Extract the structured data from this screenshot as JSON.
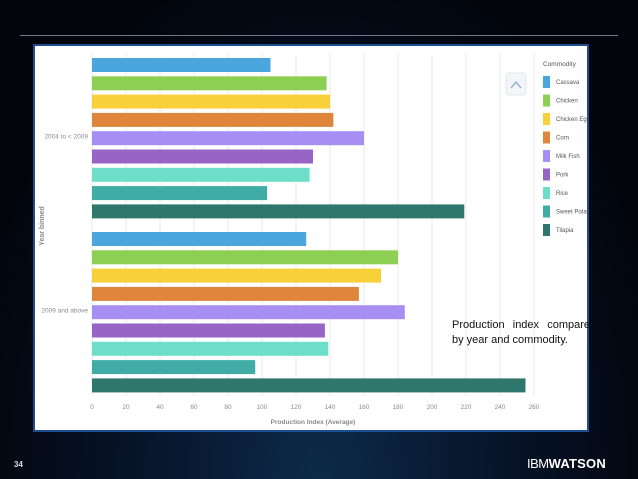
{
  "slide": {
    "page_number": "34",
    "callout_text": "Production index compare by year and commodity.",
    "logo_part1": "IBM",
    "logo_part2": "WATSON"
  },
  "colors": {
    "Cassava": "#4aa6dc",
    "Chicken": "#8ccf52",
    "Chicken Egg": "#f7d03a",
    "Corn": "#e0853c",
    "Milk Fish": "#a68ef2",
    "Pork": "#9865c6",
    "Rice": "#6ddfc8",
    "Sweet Potato": "#3fada5",
    "Tilapia": "#2f776c"
  },
  "chart_data": {
    "type": "bar",
    "orientation": "horizontal",
    "xlabel": "Production Index (Average)",
    "ylabel": "Year binned",
    "xlim": [
      0,
      260
    ],
    "x_ticks": [
      0,
      20,
      40,
      60,
      80,
      100,
      120,
      140,
      160,
      180,
      200,
      220,
      240,
      260
    ],
    "grid": true,
    "legend_title": "Commodity",
    "legend_position": "top-right",
    "series_names": [
      "Cassava",
      "Chicken",
      "Chicken Egg",
      "Corn",
      "Milk Fish",
      "Pork",
      "Rice",
      "Sweet Potato",
      "Tilapia"
    ],
    "groups": [
      {
        "label": "2004 to < 2009",
        "values": [
          105,
          138,
          140,
          142,
          160,
          130,
          128,
          103,
          219
        ]
      },
      {
        "label": "2009 and above",
        "values": [
          126,
          180,
          170,
          157,
          184,
          137,
          139,
          96,
          255
        ]
      }
    ]
  }
}
